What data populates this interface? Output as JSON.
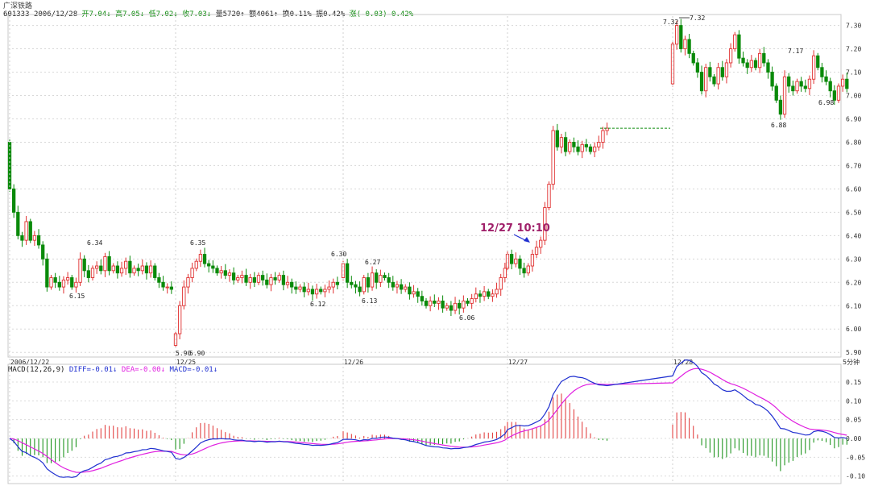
{
  "header": {
    "name": "广深铁路",
    "code": "601333",
    "date": "2006/12/28",
    "fields": [
      {
        "label": "开",
        "value": "7.04↓"
      },
      {
        "label": "高",
        "value": "7.05↓"
      },
      {
        "label": "低",
        "value": "7.02↓"
      },
      {
        "label": "收",
        "value": "7.03↓"
      },
      {
        "label": "量",
        "value": "5720↑"
      },
      {
        "label": "额",
        "value": "4061↑"
      },
      {
        "label": "换",
        "value": "0.11%"
      },
      {
        "label": "振",
        "value": "0.42%"
      },
      {
        "label": "涨",
        "value": "(-0.03)-0.42%"
      }
    ]
  },
  "macd_header": {
    "title": "MACD(12,26,9)",
    "diff": "DIFF=-0.01↓",
    "dea": "DEA=-0.00↓",
    "macd": "MACD=-0.01↓"
  },
  "colors": {
    "up": "#e03030",
    "down": "#0a8a0a",
    "diff": "#2030d0",
    "dea": "#e020e0",
    "annotation": "#a0206a"
  },
  "chart_data": {
    "type": "candlestick",
    "period_label": "5分钟",
    "price_axis": {
      "range": [
        5.88,
        7.34
      ],
      "ticks": [
        "5.90",
        "6.00",
        "6.10",
        "6.20",
        "6.30",
        "6.40",
        "6.50",
        "6.60",
        "6.70",
        "6.80",
        "6.90",
        "7.00",
        "7.10",
        "7.20",
        "7.30"
      ]
    },
    "date_labels": [
      "2006/12/22",
      "12/25",
      "12/26",
      "12/27",
      "12/28"
    ],
    "price_annotations": [
      {
        "text": "6.34",
        "value": 6.34
      },
      {
        "text": "6.15",
        "value": 6.15
      },
      {
        "text": "6.35",
        "value": 6.35
      },
      {
        "text": "5.90",
        "value": 5.9
      },
      {
        "text": "5.90",
        "value": 5.9
      },
      {
        "text": "6.30",
        "value": 6.3
      },
      {
        "text": "6.27",
        "value": 6.27
      },
      {
        "text": "6.12",
        "value": 6.12
      },
      {
        "text": "6.13",
        "value": 6.13
      },
      {
        "text": "6.06",
        "value": 6.06
      },
      {
        "text": "7.32",
        "value": 7.32
      },
      {
        "text": "7.32",
        "value": 7.32
      },
      {
        "text": "7.17",
        "value": 7.17
      },
      {
        "text": "6.88",
        "value": 6.88
      },
      {
        "text": "6.98",
        "value": 6.98
      }
    ],
    "callout": {
      "text": "12/27 10:10"
    },
    "series": [
      {
        "name": "12/22",
        "points": [
          [
            6.8,
            6.6
          ],
          [
            6.6,
            6.5
          ],
          [
            6.5,
            6.4
          ],
          [
            6.4,
            6.38
          ],
          [
            6.38,
            6.46
          ],
          [
            6.46,
            6.38
          ],
          [
            6.38,
            6.4
          ],
          [
            6.4,
            6.36
          ],
          [
            6.36,
            6.3
          ],
          [
            6.3,
            6.18
          ],
          [
            6.18,
            6.22
          ],
          [
            6.22,
            6.2
          ],
          [
            6.2,
            6.18
          ],
          [
            6.18,
            6.21
          ],
          [
            6.21,
            6.22
          ],
          [
            6.22,
            6.18
          ],
          [
            6.18,
            6.2
          ],
          [
            6.2,
            6.3
          ],
          [
            6.3,
            6.25
          ],
          [
            6.25,
            6.22
          ],
          [
            6.22,
            6.26
          ],
          [
            6.26,
            6.27
          ],
          [
            6.27,
            6.25
          ],
          [
            6.25,
            6.31
          ],
          [
            6.31,
            6.25
          ],
          [
            6.25,
            6.27
          ],
          [
            6.27,
            6.24
          ],
          [
            6.24,
            6.26
          ],
          [
            6.26,
            6.29
          ],
          [
            6.29,
            6.24
          ],
          [
            6.24,
            6.26
          ],
          [
            6.26,
            6.25
          ],
          [
            6.25,
            6.27
          ],
          [
            6.27,
            6.24
          ],
          [
            6.24,
            6.27
          ],
          [
            6.27,
            6.22
          ],
          [
            6.22,
            6.2
          ],
          [
            6.2,
            6.18
          ],
          [
            6.18,
            6.18
          ],
          [
            6.18,
            6.17
          ]
        ]
      },
      {
        "name": "12/25",
        "points": [
          [
            5.93,
            5.98
          ],
          [
            5.98,
            6.1
          ],
          [
            6.1,
            6.18
          ],
          [
            6.18,
            6.22
          ],
          [
            6.22,
            6.26
          ],
          [
            6.26,
            6.29
          ],
          [
            6.29,
            6.32
          ],
          [
            6.32,
            6.28
          ],
          [
            6.28,
            6.27
          ],
          [
            6.27,
            6.26
          ],
          [
            6.26,
            6.24
          ],
          [
            6.24,
            6.25
          ],
          [
            6.25,
            6.23
          ],
          [
            6.23,
            6.24
          ],
          [
            6.24,
            6.21
          ],
          [
            6.21,
            6.22
          ],
          [
            6.22,
            6.23
          ],
          [
            6.23,
            6.2
          ],
          [
            6.2,
            6.22
          ],
          [
            6.22,
            6.2
          ],
          [
            6.2,
            6.23
          ],
          [
            6.23,
            6.21
          ],
          [
            6.21,
            6.19
          ],
          [
            6.19,
            6.22
          ],
          [
            6.22,
            6.21
          ],
          [
            6.21,
            6.23
          ],
          [
            6.23,
            6.19
          ],
          [
            6.19,
            6.2
          ],
          [
            6.2,
            6.18
          ],
          [
            6.18,
            6.17
          ],
          [
            6.17,
            6.18
          ],
          [
            6.18,
            6.16
          ],
          [
            6.16,
            6.17
          ],
          [
            6.17,
            6.15
          ],
          [
            6.15,
            6.17
          ],
          [
            6.17,
            6.16
          ],
          [
            6.16,
            6.17
          ],
          [
            6.17,
            6.18
          ],
          [
            6.18,
            6.2
          ],
          [
            6.2,
            6.19
          ]
        ]
      },
      {
        "name": "12/26",
        "points": [
          [
            6.22,
            6.28
          ],
          [
            6.28,
            6.2
          ],
          [
            6.2,
            6.19
          ],
          [
            6.19,
            6.18
          ],
          [
            6.18,
            6.16
          ],
          [
            6.16,
            6.22
          ],
          [
            6.22,
            6.18
          ],
          [
            6.18,
            6.24
          ],
          [
            6.24,
            6.2
          ],
          [
            6.2,
            6.23
          ],
          [
            6.23,
            6.22
          ],
          [
            6.22,
            6.2
          ],
          [
            6.2,
            6.18
          ],
          [
            6.18,
            6.19
          ],
          [
            6.19,
            6.17
          ],
          [
            6.17,
            6.18
          ],
          [
            6.18,
            6.15
          ],
          [
            6.15,
            6.16
          ],
          [
            6.16,
            6.14
          ],
          [
            6.14,
            6.12
          ],
          [
            6.12,
            6.1
          ],
          [
            6.1,
            6.12
          ],
          [
            6.12,
            6.11
          ],
          [
            6.11,
            6.12
          ],
          [
            6.12,
            6.09
          ],
          [
            6.09,
            6.1
          ],
          [
            6.1,
            6.08
          ],
          [
            6.08,
            6.11
          ],
          [
            6.11,
            6.09
          ],
          [
            6.09,
            6.12
          ],
          [
            6.12,
            6.11
          ],
          [
            6.11,
            6.13
          ],
          [
            6.13,
            6.15
          ],
          [
            6.15,
            6.14
          ],
          [
            6.14,
            6.16
          ],
          [
            6.16,
            6.14
          ],
          [
            6.14,
            6.15
          ],
          [
            6.15,
            6.17
          ],
          [
            6.17,
            6.22
          ],
          [
            6.22,
            6.26
          ]
        ]
      },
      {
        "name": "12/27",
        "points": [
          [
            6.26,
            6.32
          ],
          [
            6.32,
            6.28
          ],
          [
            6.28,
            6.3
          ],
          [
            6.3,
            6.26
          ],
          [
            6.26,
            6.24
          ],
          [
            6.24,
            6.27
          ],
          [
            6.27,
            6.32
          ],
          [
            6.32,
            6.35
          ],
          [
            6.35,
            6.38
          ],
          [
            6.38,
            6.52
          ],
          [
            6.52,
            6.62
          ],
          [
            6.62,
            6.85
          ],
          [
            6.85,
            6.78
          ],
          [
            6.78,
            6.82
          ],
          [
            6.82,
            6.76
          ],
          [
            6.76,
            6.8
          ],
          [
            6.8,
            6.78
          ],
          [
            6.78,
            6.76
          ],
          [
            6.76,
            6.79
          ],
          [
            6.79,
            6.78
          ],
          [
            6.78,
            6.76
          ],
          [
            6.76,
            6.78
          ],
          [
            6.78,
            6.8
          ],
          [
            6.8,
            6.85
          ],
          [
            6.85,
            6.86
          ]
        ]
      },
      {
        "name": "12/28",
        "points": [
          [
            7.05,
            7.22
          ],
          [
            7.22,
            7.3
          ],
          [
            7.3,
            7.2
          ],
          [
            7.2,
            7.24
          ],
          [
            7.24,
            7.18
          ],
          [
            7.18,
            7.14
          ],
          [
            7.14,
            7.1
          ],
          [
            7.1,
            7.02
          ],
          [
            7.02,
            7.12
          ],
          [
            7.12,
            7.08
          ],
          [
            7.08,
            7.05
          ],
          [
            7.05,
            7.12
          ],
          [
            7.12,
            7.08
          ],
          [
            7.08,
            7.14
          ],
          [
            7.14,
            7.2
          ],
          [
            7.2,
            7.26
          ],
          [
            7.26,
            7.16
          ],
          [
            7.16,
            7.14
          ],
          [
            7.14,
            7.12
          ],
          [
            7.12,
            7.15
          ],
          [
            7.15,
            7.12
          ],
          [
            7.12,
            7.18
          ],
          [
            7.18,
            7.14
          ],
          [
            7.14,
            7.1
          ],
          [
            7.1,
            7.04
          ],
          [
            7.04,
            6.98
          ],
          [
            6.98,
            6.92
          ],
          [
            6.92,
            7.08
          ],
          [
            7.08,
            7.04
          ],
          [
            7.04,
            7.02
          ],
          [
            7.02,
            7.06
          ],
          [
            7.06,
            7.04
          ],
          [
            7.04,
            7.03
          ],
          [
            7.03,
            7.07
          ],
          [
            7.07,
            7.17
          ],
          [
            7.17,
            7.12
          ],
          [
            7.12,
            7.08
          ],
          [
            7.08,
            7.06
          ],
          [
            7.06,
            7.02
          ],
          [
            7.02,
            6.98
          ],
          [
            6.98,
            7.04
          ],
          [
            7.04,
            7.07
          ],
          [
            7.07,
            7.03
          ]
        ]
      }
    ],
    "macd": {
      "axis": {
        "range": [
          -0.12,
          0.18
        ],
        "ticks": [
          "-0.10",
          "-0.05",
          "0.00",
          "0.05",
          "0.10",
          "0.15"
        ]
      },
      "series": [
        "DIFF",
        "DEA",
        "MACD"
      ]
    }
  }
}
